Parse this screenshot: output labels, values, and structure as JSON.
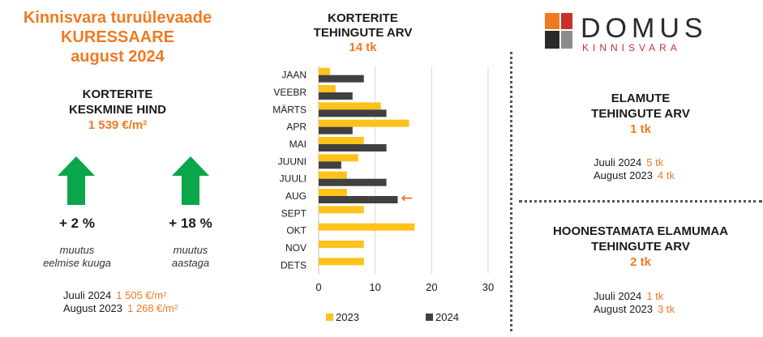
{
  "header": {
    "line1": "Kinnisvara turuülevaade",
    "line2": "KURESSAARE",
    "line3": "august 2024"
  },
  "avg_price": {
    "label1": "KORTERITE",
    "label2": "KESKMINE HIND",
    "value": "1 539 €/m²"
  },
  "changes": [
    {
      "pct": "+ 2 %",
      "note1": "muutus",
      "note2": "eelmise kuuga",
      "direction": "up"
    },
    {
      "pct": "+ 18 %",
      "note1": "muutus",
      "note2": "aastaga",
      "direction": "up"
    }
  ],
  "avg_comparison": [
    {
      "label": "Juuli 2024",
      "value": "1 505 €/m²"
    },
    {
      "label": "August 2023",
      "value": "1 268 €/m²"
    }
  ],
  "chart_header": {
    "line1": "KORTERITE",
    "line2": "TEHINGUTE ARV",
    "value": "14 tk"
  },
  "chart_data": {
    "type": "bar",
    "orientation": "horizontal",
    "categories": [
      "JAAN",
      "VEEBR",
      "MÄRTS",
      "APR",
      "MAI",
      "JUUNI",
      "JUULI",
      "AUG",
      "SEPT",
      "OKT",
      "NOV",
      "DETS"
    ],
    "series": [
      {
        "name": "2023",
        "color": "#ffc21a",
        "values": [
          2,
          3,
          11,
          16,
          8,
          7,
          5,
          5,
          8,
          17,
          8,
          8
        ]
      },
      {
        "name": "2024",
        "color": "#404040",
        "values": [
          8,
          6,
          12,
          6,
          12,
          4,
          12,
          14,
          null,
          null,
          null,
          null
        ]
      }
    ],
    "xticks": [
      0,
      10,
      20,
      30
    ],
    "xlim": [
      0,
      30
    ],
    "grid": "vertical",
    "legend": "bottom",
    "highlight": {
      "category": "AUG",
      "marker": "←",
      "color": "#f07a22"
    }
  },
  "houses": {
    "label1": "ELAMUTE",
    "label2": "TEHINGUTE ARV",
    "value": "1 tk",
    "comparison": [
      {
        "label": "Juuli 2024",
        "value": "5 tk"
      },
      {
        "label": "August 2023",
        "value": "4 tk"
      }
    ]
  },
  "land": {
    "label1": "HOONESTAMATA ELAMUMAA",
    "label2": "TEHINGUTE ARV",
    "value": "2 tk",
    "comparison": [
      {
        "label": "Juuli 2024",
        "value": "1 tk"
      },
      {
        "label": "August 2023",
        "value": "3 tk"
      }
    ]
  },
  "logo": {
    "name": "DOMUS",
    "sub": "KINNISVARA",
    "colors": [
      "#f07a22",
      "#c9312b",
      "#2a2a2a",
      "#8c8c8c"
    ]
  },
  "colors": {
    "accent": "#f07a22",
    "arrow": "#0aa64a"
  }
}
